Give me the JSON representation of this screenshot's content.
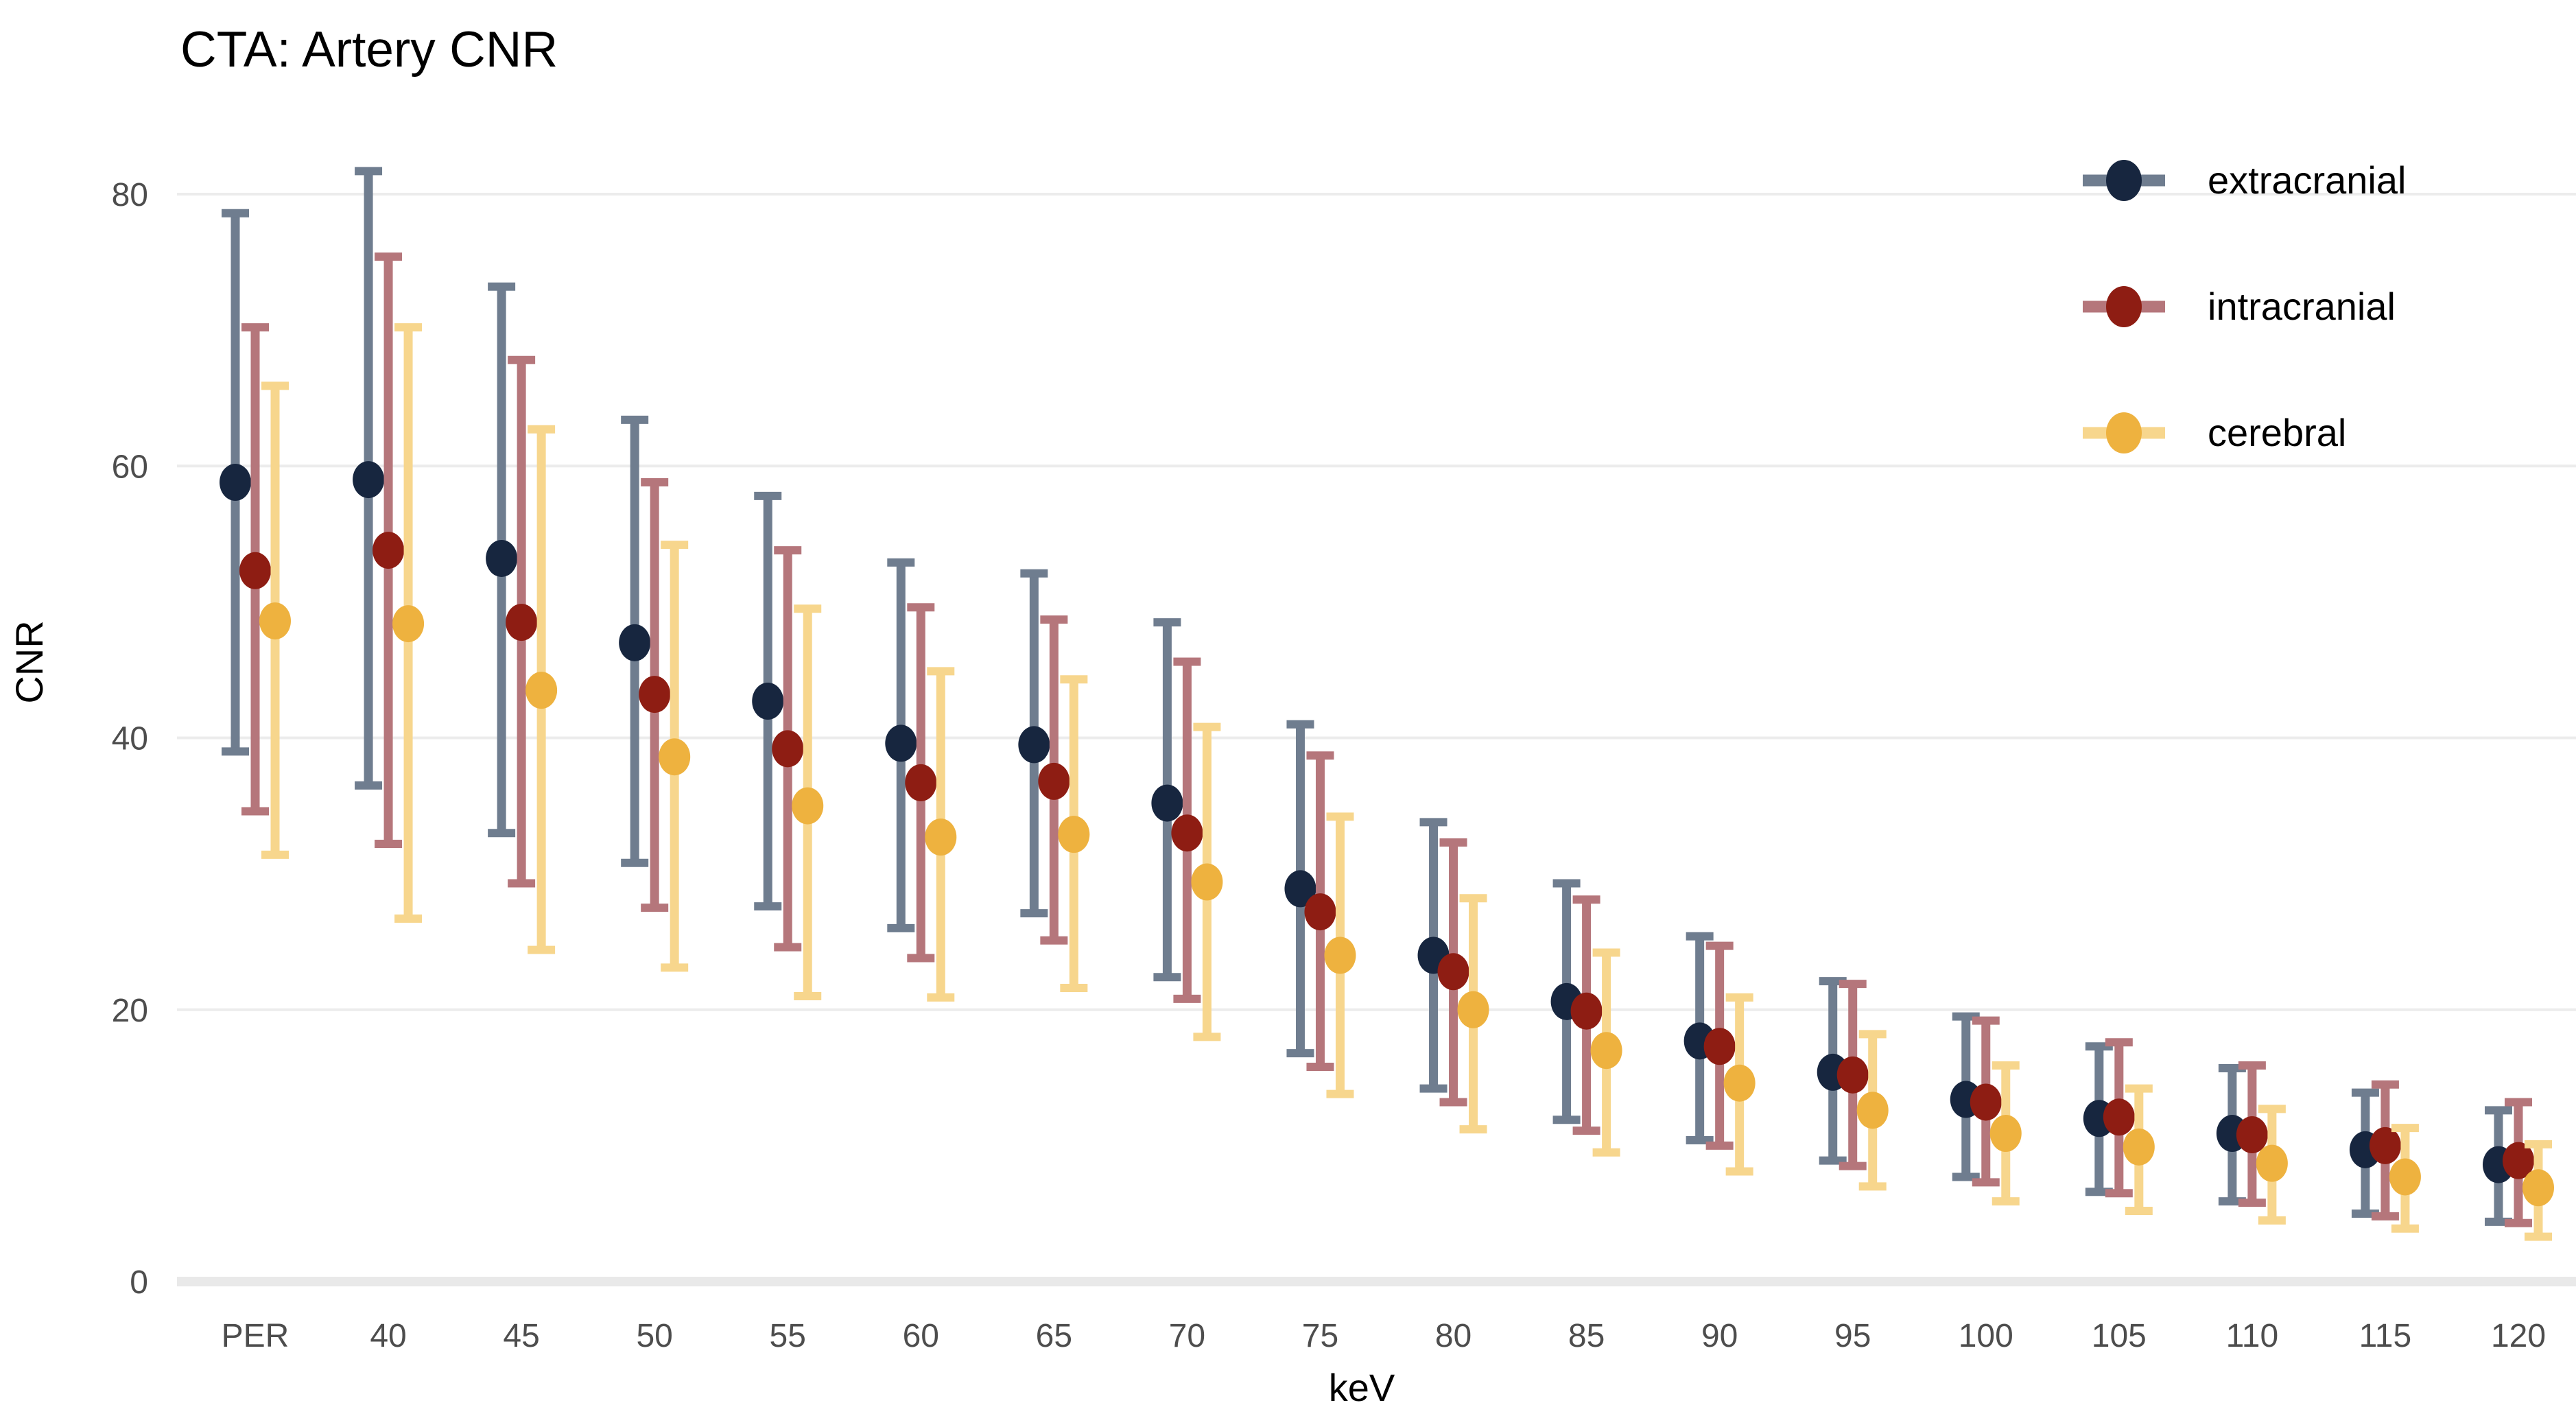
{
  "chart_data": {
    "type": "pointrange",
    "title": "CTA: Artery CNR",
    "xlabel": "keV",
    "ylabel": "CNR",
    "categories": [
      "PER",
      "40",
      "45",
      "50",
      "55",
      "60",
      "65",
      "70",
      "75",
      "80",
      "85",
      "90",
      "95",
      "100",
      "105",
      "110",
      "115",
      "120"
    ],
    "yticks": [
      0,
      20,
      40,
      60,
      80
    ],
    "ylim": [
      0,
      84
    ],
    "grid": true,
    "legend_position": "top-right",
    "background_color": "#ffffff",
    "grid_color": "#ececec",
    "baseline_color": "#e9e9e9",
    "tick_label_color": "#4d4d4d",
    "text_color": "#000000",
    "series": [
      {
        "name": "extracranial",
        "point_color": "#17263f",
        "bar_color": "#6f7d8f",
        "values": [
          58.8,
          59.0,
          53.2,
          47.0,
          42.7,
          39.6,
          39.5,
          35.2,
          28.9,
          24.0,
          20.6,
          17.7,
          15.4,
          13.4,
          12.0,
          10.9,
          9.7,
          8.6
        ],
        "lower": [
          39.0,
          36.5,
          33.0,
          30.8,
          27.6,
          26.0,
          27.1,
          22.4,
          16.8,
          14.2,
          11.9,
          10.4,
          8.9,
          7.7,
          6.6,
          5.9,
          5.0,
          4.4
        ],
        "upper": [
          78.6,
          81.7,
          73.2,
          63.4,
          57.8,
          52.9,
          52.1,
          48.5,
          41.0,
          33.8,
          29.3,
          25.4,
          22.1,
          19.5,
          17.3,
          15.7,
          13.9,
          12.6
        ]
      },
      {
        "name": "intracranial",
        "point_color": "#8e1d13",
        "bar_color": "#b5767b",
        "values": [
          52.3,
          53.8,
          48.5,
          43.2,
          39.2,
          36.7,
          36.8,
          33.0,
          27.2,
          22.8,
          19.9,
          17.3,
          15.2,
          13.2,
          12.1,
          10.8,
          10.0,
          8.9
        ],
        "lower": [
          34.6,
          32.2,
          29.3,
          27.5,
          24.6,
          23.8,
          25.1,
          20.8,
          15.8,
          13.2,
          11.1,
          10.0,
          8.5,
          7.3,
          6.5,
          5.8,
          4.8,
          4.3
        ],
        "upper": [
          70.2,
          75.4,
          67.8,
          58.8,
          53.8,
          49.6,
          48.7,
          45.6,
          38.7,
          32.3,
          28.1,
          24.7,
          21.9,
          19.2,
          17.6,
          15.9,
          14.5,
          13.2
        ]
      },
      {
        "name": "cerebral",
        "point_color": "#eeb23f",
        "bar_color": "#f7d68d",
        "values": [
          48.6,
          48.4,
          43.5,
          38.6,
          35.0,
          32.7,
          32.9,
          29.4,
          24.0,
          20.0,
          17.0,
          14.6,
          12.6,
          10.9,
          9.9,
          8.7,
          7.7,
          6.9
        ],
        "lower": [
          31.4,
          26.7,
          24.4,
          23.1,
          21.0,
          20.9,
          21.6,
          18.0,
          13.8,
          11.2,
          9.5,
          8.1,
          7.0,
          5.9,
          5.2,
          4.5,
          3.9,
          3.3
        ],
        "upper": [
          65.9,
          70.2,
          62.7,
          54.2,
          49.5,
          44.9,
          44.3,
          40.8,
          34.2,
          28.2,
          24.2,
          20.9,
          18.2,
          15.9,
          14.2,
          12.7,
          11.3,
          10.1
        ]
      }
    ]
  }
}
